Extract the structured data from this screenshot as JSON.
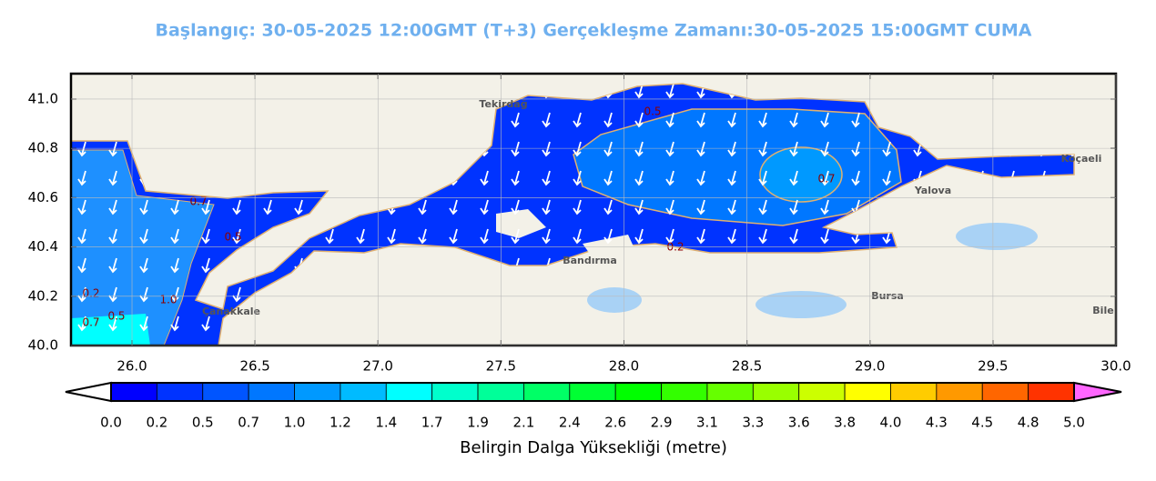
{
  "title": "Başlangıç: 30-05-2025 12:00GMT (T+3)  Gerçekleşme Zamanı:30-05-2025 15:00GMT CUMA",
  "map": {
    "xlim": [
      25.752,
      30.0
    ],
    "ylim": [
      40.0,
      41.103
    ],
    "xticks": [
      {
        "value": 26,
        "label": "26.0"
      },
      {
        "value": 26.5,
        "label": "26.5"
      },
      {
        "value": 27,
        "label": "27.0"
      },
      {
        "value": 27.5,
        "label": "27.5"
      },
      {
        "value": 28,
        "label": "28.0"
      },
      {
        "value": 28.5,
        "label": "28.5"
      },
      {
        "value": 29,
        "label": "29.0"
      },
      {
        "value": 29.5,
        "label": "29.5"
      },
      {
        "value": 30,
        "label": "30.0"
      }
    ],
    "yticks": [
      {
        "value": 40,
        "label": "40.0"
      },
      {
        "value": 40.2,
        "label": "40.2"
      },
      {
        "value": 40.4,
        "label": "40.4"
      },
      {
        "value": 40.6,
        "label": "40.6"
      },
      {
        "value": 40.8,
        "label": "40.8"
      },
      {
        "value": 41,
        "label": "41.0"
      }
    ],
    "places": [
      "Tekirdağ",
      "Yalova",
      "Koçaeli",
      "Bursa",
      "Çanakkale",
      "Bandırma",
      "Bile"
    ],
    "contour_labels": [
      "0.5",
      "0.7",
      "0.2",
      "0.7",
      "0.5",
      "0.5",
      "0.7",
      "0.2",
      "1.0"
    ]
  },
  "colorbar": {
    "label": "Belirgin Dalga Yüksekliği (metre)",
    "labels": [
      "0.0",
      "0.2",
      "0.5",
      "0.7",
      "1.0",
      "1.2",
      "1.4",
      "1.7",
      "1.9",
      "2.1",
      "2.4",
      "2.6",
      "2.9",
      "3.1",
      "3.3",
      "3.6",
      "3.8",
      "4.0",
      "4.3",
      "4.5",
      "4.8",
      "5.0"
    ],
    "colors": [
      "#0000ff",
      "#0033ff",
      "#0055ff",
      "#0077ff",
      "#0099ff",
      "#00bbff",
      "#00ffff",
      "#00ffcc",
      "#00ff99",
      "#00ff66",
      "#00ff33",
      "#00ff00",
      "#33ff00",
      "#66ff00",
      "#99ff00",
      "#ccff00",
      "#ffff00",
      "#ffcc00",
      "#ff9900",
      "#ff6600",
      "#ff3300"
    ],
    "under_color": "#ffffff",
    "over_color": "#ff66ff"
  }
}
